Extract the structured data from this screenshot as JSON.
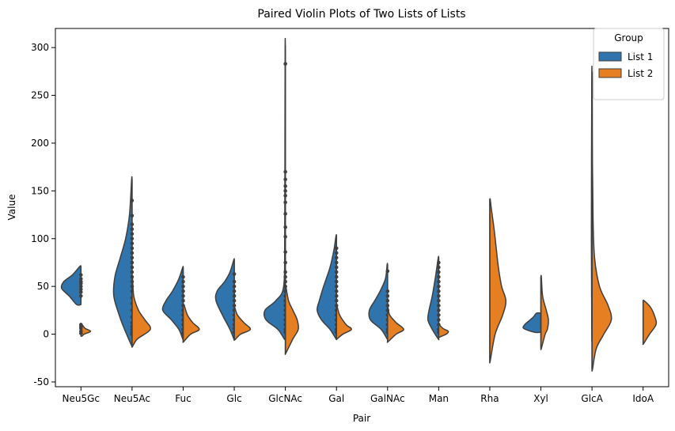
{
  "chart_data": {
    "type": "violin",
    "title": "Paired Violin Plots of Two Lists of Lists",
    "xlabel": "Pair",
    "ylabel": "Value",
    "ylim": [
      -55,
      320
    ],
    "yticks": [
      -50,
      0,
      50,
      100,
      150,
      200,
      250,
      300
    ],
    "categories": [
      "Neu5Gc",
      "Neu5Ac",
      "Fuc",
      "Glc",
      "GlcNAc",
      "Gal",
      "GalNAc",
      "Man",
      "Rha",
      "Xyl",
      "GlcA",
      "IdoA"
    ],
    "legend": {
      "title": "Group",
      "position": "top-right"
    },
    "series": [
      {
        "name": "List 1",
        "color": "#2f74ad",
        "side": "left",
        "violins": [
          {
            "category": "Neu5Gc",
            "profile": [
              [
                31,
                0.2
              ],
              [
                40,
                0.55
              ],
              [
                48,
                0.9
              ],
              [
                55,
                0.8
              ],
              [
                62,
                0.4
              ],
              [
                71,
                0.05
              ]
            ],
            "points": [
              40,
              44,
              47,
              50,
              53,
              55,
              58,
              62
            ]
          },
          {
            "category": "Neu5Ac",
            "profile": [
              [
                -12,
                0.02
              ],
              [
                5,
                0.35
              ],
              [
                20,
                0.6
              ],
              [
                40,
                0.85
              ],
              [
                60,
                0.8
              ],
              [
                80,
                0.55
              ],
              [
                100,
                0.3
              ],
              [
                125,
                0.12
              ],
              [
                162,
                0.02
              ]
            ],
            "points": [
              0,
              2,
              5,
              8,
              12,
              18,
              25,
              32,
              38,
              45,
              50,
              55,
              60,
              65,
              70,
              75,
              80,
              85,
              90,
              95,
              100,
              105,
              110,
              115,
              124,
              140
            ]
          },
          {
            "category": "Fuc",
            "profile": [
              [
                -5,
                0.02
              ],
              [
                5,
                0.2
              ],
              [
                15,
                0.55
              ],
              [
                25,
                0.95
              ],
              [
                35,
                0.8
              ],
              [
                45,
                0.5
              ],
              [
                58,
                0.2
              ],
              [
                70,
                0.02
              ]
            ],
            "points": [
              1,
              5,
              10,
              15,
              20,
              25,
              30,
              35,
              40,
              45,
              50,
              55,
              60
            ]
          },
          {
            "category": "Glc",
            "profile": [
              [
                -5,
                0.02
              ],
              [
                5,
                0.2
              ],
              [
                20,
                0.55
              ],
              [
                35,
                0.85
              ],
              [
                45,
                0.8
              ],
              [
                55,
                0.45
              ],
              [
                65,
                0.2
              ],
              [
                78,
                0.02
              ]
            ],
            "points": [
              2,
              6,
              10,
              15,
              20,
              25,
              30,
              35,
              40,
              45,
              50,
              55,
              63
            ]
          },
          {
            "category": "GlcNAc",
            "profile": [
              [
                -5,
                0.05
              ],
              [
                5,
                0.35
              ],
              [
                15,
                0.9
              ],
              [
                25,
                0.95
              ],
              [
                35,
                0.45
              ],
              [
                50,
                0.08
              ],
              [
                100,
                0.03
              ],
              [
                200,
                0.02
              ],
              [
                302,
                0.01
              ]
            ],
            "points": [
              2,
              5,
              10,
              15,
              20,
              25,
              30,
              35,
              40,
              45,
              50,
              55,
              60,
              65,
              75,
              86,
              102,
              112,
              126,
              138,
              145,
              150,
              155,
              162,
              170,
              283
            ]
          },
          {
            "category": "Gal",
            "profile": [
              [
                -5,
                0.02
              ],
              [
                5,
                0.3
              ],
              [
                15,
                0.7
              ],
              [
                25,
                0.9
              ],
              [
                35,
                0.8
              ],
              [
                50,
                0.6
              ],
              [
                70,
                0.3
              ],
              [
                88,
                0.12
              ],
              [
                103,
                0.02
              ]
            ],
            "points": [
              2,
              5,
              10,
              15,
              20,
              25,
              30,
              35,
              40,
              45,
              50,
              55,
              60,
              65,
              70,
              75,
              80,
              85,
              90
            ]
          },
          {
            "category": "GalNAc",
            "profile": [
              [
                -5,
                0.02
              ],
              [
                5,
                0.3
              ],
              [
                15,
                0.8
              ],
              [
                25,
                0.85
              ],
              [
                35,
                0.6
              ],
              [
                45,
                0.35
              ],
              [
                58,
                0.1
              ],
              [
                73,
                0.02
              ]
            ],
            "points": [
              2,
              5,
              10,
              15,
              20,
              25,
              30,
              35,
              40,
              45,
              66
            ]
          },
          {
            "category": "Man",
            "profile": [
              [
                -5,
                0.02
              ],
              [
                5,
                0.3
              ],
              [
                15,
                0.5
              ],
              [
                25,
                0.45
              ],
              [
                40,
                0.3
              ],
              [
                60,
                0.15
              ],
              [
                80,
                0.02
              ]
            ],
            "points": [
              2,
              5,
              10,
              15,
              20,
              25,
              30,
              35,
              40,
              45,
              50,
              55,
              60,
              65,
              70,
              75
            ]
          },
          {
            "category": "Xyl",
            "profile": [
              [
                2,
                0.3
              ],
              [
                6,
                0.8
              ],
              [
                10,
                0.75
              ],
              [
                14,
                0.55
              ],
              [
                18,
                0.35
              ],
              [
                22,
                0.2
              ]
            ],
            "points": []
          },
          {
            "category": "GlcA",
            "profile": [
              [
                0,
                0.01
              ],
              [
                100,
                0.03
              ],
              [
                268,
                0.01
              ]
            ],
            "points": []
          }
        ]
      },
      {
        "name": "List 2",
        "color": "#e67e22",
        "side": "right",
        "violins": [
          {
            "category": "Neu5Gc",
            "profile": [
              [
                -2,
                0.05
              ],
              [
                0,
                0.15
              ],
              [
                3,
                0.45
              ],
              [
                6,
                0.2
              ],
              [
                10,
                0.05
              ]
            ],
            "points": [
              1,
              3,
              6,
              8,
              10
            ]
          },
          {
            "category": "Neu5Ac",
            "profile": [
              [
                -13,
                0.02
              ],
              [
                -5,
                0.25
              ],
              [
                5,
                0.85
              ],
              [
                15,
                0.6
              ],
              [
                25,
                0.3
              ],
              [
                40,
                0.08
              ],
              [
                60,
                0.02
              ]
            ],
            "points": []
          },
          {
            "category": "Fuc",
            "profile": [
              [
                -8,
                0.02
              ],
              [
                0,
                0.35
              ],
              [
                5,
                0.75
              ],
              [
                12,
                0.45
              ],
              [
                20,
                0.2
              ],
              [
                30,
                0.05
              ]
            ],
            "points": []
          },
          {
            "category": "Glc",
            "profile": [
              [
                -6,
                0.02
              ],
              [
                0,
                0.3
              ],
              [
                5,
                0.75
              ],
              [
                12,
                0.45
              ],
              [
                20,
                0.15
              ],
              [
                28,
                0.02
              ]
            ],
            "points": []
          },
          {
            "category": "GlcNAc",
            "profile": [
              [
                -20,
                0.02
              ],
              [
                -5,
                0.35
              ],
              [
                5,
                0.6
              ],
              [
                15,
                0.55
              ],
              [
                25,
                0.35
              ],
              [
                35,
                0.15
              ],
              [
                50,
                0.02
              ]
            ],
            "points": []
          },
          {
            "category": "Gal",
            "profile": [
              [
                -5,
                0.02
              ],
              [
                0,
                0.3
              ],
              [
                5,
                0.7
              ],
              [
                10,
                0.45
              ],
              [
                20,
                0.15
              ],
              [
                30,
                0.02
              ]
            ],
            "points": []
          },
          {
            "category": "GalNAc",
            "profile": [
              [
                -8,
                0.02
              ],
              [
                0,
                0.4
              ],
              [
                5,
                0.75
              ],
              [
                12,
                0.4
              ],
              [
                20,
                0.1
              ],
              [
                28,
                0.02
              ]
            ],
            "points": []
          },
          {
            "category": "Man",
            "profile": [
              [
                -3,
                0.05
              ],
              [
                0,
                0.35
              ],
              [
                3,
                0.45
              ],
              [
                6,
                0.2
              ],
              [
                10,
                0.02
              ]
            ],
            "points": []
          },
          {
            "category": "Rha",
            "profile": [
              [
                -28,
                0.02
              ],
              [
                0,
                0.25
              ],
              [
                20,
                0.6
              ],
              [
                35,
                0.75
              ],
              [
                50,
                0.55
              ],
              [
                70,
                0.4
              ],
              [
                90,
                0.3
              ],
              [
                110,
                0.2
              ],
              [
                130,
                0.08
              ],
              [
                141,
                0.02
              ]
            ],
            "points": []
          },
          {
            "category": "Xyl",
            "profile": [
              [
                -15,
                0.02
              ],
              [
                0,
                0.2
              ],
              [
                5,
                0.3
              ],
              [
                15,
                0.35
              ],
              [
                25,
                0.25
              ],
              [
                40,
                0.08
              ],
              [
                60,
                0.02
              ]
            ],
            "points": []
          },
          {
            "category": "GlcA",
            "profile": [
              [
                -37,
                0.02
              ],
              [
                -15,
                0.2
              ],
              [
                0,
                0.55
              ],
              [
                15,
                0.9
              ],
              [
                30,
                0.75
              ],
              [
                50,
                0.35
              ],
              [
                80,
                0.12
              ],
              [
                120,
                0.05
              ],
              [
                180,
                0.02
              ],
              [
                268,
                0.01
              ]
            ],
            "points": []
          },
          {
            "category": "IdoA",
            "profile": [
              [
                -10,
                0.02
              ],
              [
                0,
                0.3
              ],
              [
                10,
                0.6
              ],
              [
                18,
                0.55
              ],
              [
                28,
                0.35
              ],
              [
                35,
                0.05
              ]
            ],
            "points": []
          }
        ]
      }
    ]
  }
}
